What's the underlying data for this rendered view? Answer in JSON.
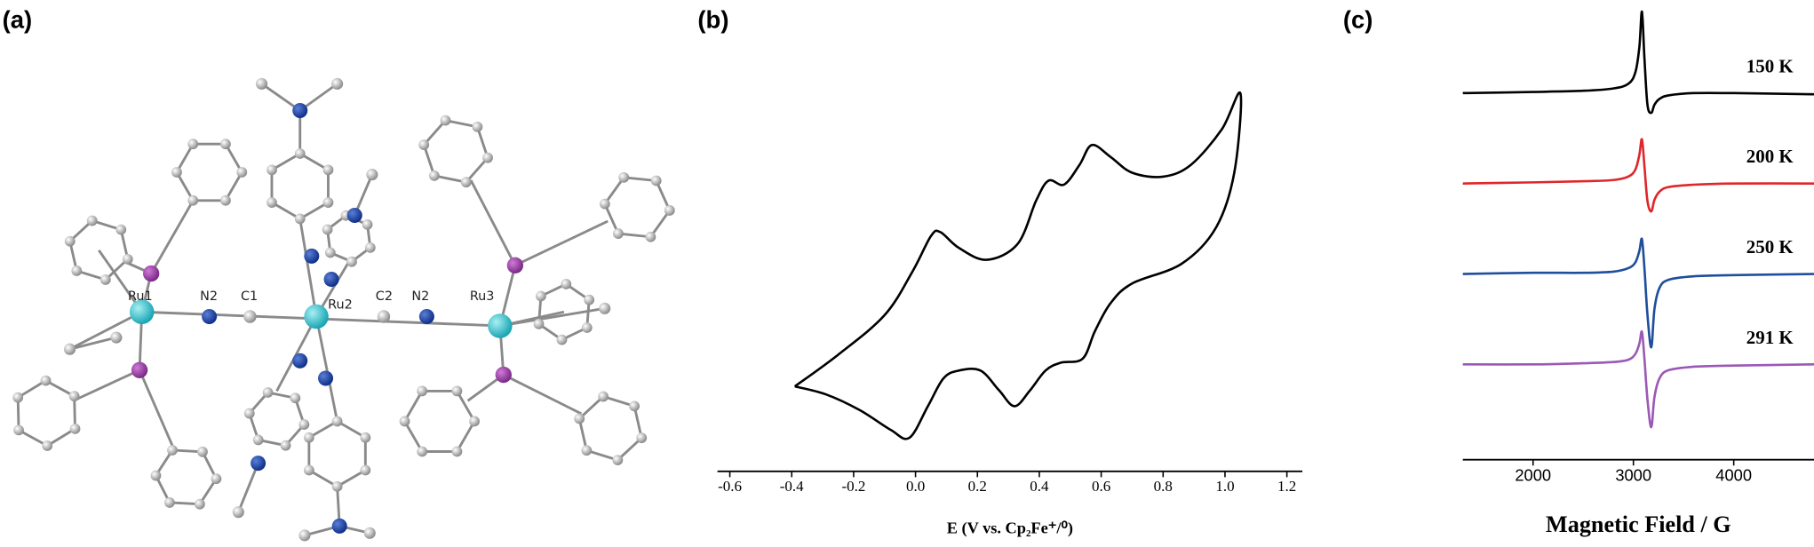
{
  "panel_a": {
    "label": "(a)",
    "atom_labels": [
      "Ru1",
      "N2",
      "C1",
      "Ru2",
      "C2",
      "N2",
      "Ru3"
    ]
  },
  "chart_data": [
    {
      "type": "line",
      "label": "(b)",
      "x_label": "E (V vs. Cp₂Fe⁺/⁰)",
      "x": [
        -0.39,
        -0.25,
        -0.1,
        -0.01,
        0.05,
        0.08,
        0.14,
        0.23,
        0.33,
        0.39,
        0.43,
        0.48,
        0.53,
        0.57,
        0.63,
        0.7,
        0.8,
        0.89,
        0.99,
        1.05,
        1.03,
        0.97,
        0.86,
        0.7,
        0.63,
        0.58,
        0.54,
        0.47,
        0.42,
        0.37,
        0.32,
        0.27,
        0.21,
        0.14,
        0.09,
        0.04,
        -0.02,
        -0.08,
        -0.18,
        -0.29,
        -0.39
      ],
      "series": [
        {
          "color": "#000000",
          "values": [
            0.2,
            0.28,
            0.38,
            0.49,
            0.58,
            0.59,
            0.55,
            0.52,
            0.56,
            0.67,
            0.72,
            0.71,
            0.76,
            0.81,
            0.78,
            0.74,
            0.73,
            0.76,
            0.85,
            0.94,
            0.74,
            0.6,
            0.51,
            0.46,
            0.41,
            0.34,
            0.27,
            0.26,
            0.24,
            0.19,
            0.15,
            0.19,
            0.24,
            0.24,
            0.22,
            0.15,
            0.07,
            0.09,
            0.14,
            0.18,
            0.2
          ]
        }
      ],
      "xlim": [
        -0.64,
        1.25
      ],
      "ylim": [
        0,
        1
      ],
      "xticks": [
        -0.6,
        -0.4,
        -0.2,
        {
          "value": 0,
          "label": "0.0"
        },
        0.2,
        0.4,
        0.6,
        0.8,
        {
          "value": 1,
          "label": "1.0"
        },
        1.2
      ]
    },
    {
      "type": "line",
      "label": "(c)",
      "x_label": "Magnetic Field / G",
      "x": [
        1300,
        2000,
        2500,
        2800,
        2950,
        3020,
        3060,
        3085,
        3110,
        3140,
        3178,
        3210,
        3260,
        3350,
        3600,
        4000,
        4800
      ],
      "series": [
        {
          "name": "150 K",
          "color": "#000000",
          "values": [
            0,
            1,
            2,
            4,
            8,
            18,
            40,
            70,
            30,
            -10,
            -17,
            -10,
            -5,
            -2,
            0,
            0,
            -1
          ]
        },
        {
          "name": "200 K",
          "color": "#e0262a",
          "values": [
            0,
            1,
            2,
            3,
            6,
            12,
            25,
            38,
            15,
            -15,
            -24,
            -14,
            -7,
            -3,
            -1,
            0,
            0
          ]
        },
        {
          "name": "250 K",
          "color": "#1f4e9c",
          "values": [
            0,
            1,
            1,
            2,
            5,
            10,
            20,
            30,
            5,
            -35,
            -63,
            -30,
            -12,
            -5,
            -2,
            -1,
            0
          ]
        },
        {
          "name": "291 K",
          "color": "#9b59b6",
          "values": [
            0,
            0,
            1,
            2,
            4,
            9,
            18,
            28,
            5,
            -30,
            -54,
            -28,
            -12,
            -5,
            -2,
            -1,
            0
          ]
        }
      ],
      "xlim": [
        1300,
        4800
      ],
      "ylim": [
        -80,
        80
      ],
      "xticks": [
        2000,
        3000,
        4000
      ]
    }
  ]
}
